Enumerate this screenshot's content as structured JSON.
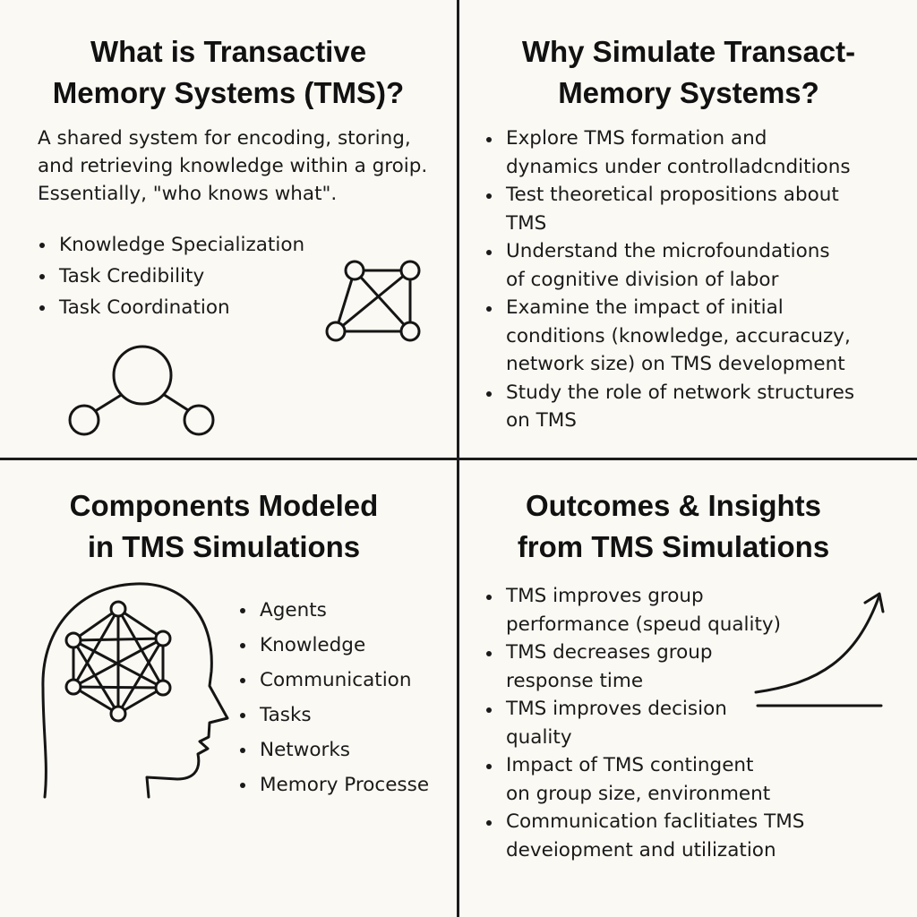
{
  "quadrants": {
    "what_is": {
      "title_lines": [
        "What is Transactive",
        "Memory Systems (TMS)?"
      ],
      "intro_lines": [
        "A shared system for encoding, storing,",
        "and retrieving knowledge within a groip.",
        "Essentially, \"who knows what\"."
      ],
      "bullets": [
        "Knowledge Specialization",
        "Task Credibility",
        "Task Coordination"
      ],
      "icons": [
        "network-graph-icon",
        "hierarchy-nodes-icon"
      ]
    },
    "why_simulate": {
      "title_lines": [
        "Why Simulate Transact-",
        "Memory Systems?"
      ],
      "bullets": [
        {
          "lines": [
            "Explore TMS formation and",
            "dynamics under controlladcnditions"
          ]
        },
        {
          "lines": [
            "Test theoretical propositions about",
            "TMS"
          ]
        },
        {
          "lines": [
            "Understand the microfoundations",
            "of cognitive division of labor"
          ]
        },
        {
          "lines": [
            "Examine the impact of initial",
            "conditions (knowledge, accuracuzy,",
            "network size) on TMS development"
          ]
        },
        {
          "lines": [
            "Study the role of network structures",
            "on TMS"
          ]
        }
      ]
    },
    "components": {
      "title_lines": [
        "Components Modeled",
        "in TMS Simulations"
      ],
      "bullets": [
        "Agents",
        "Knowledge",
        "Communication",
        "Tasks",
        "Networks",
        "Memory Processe"
      ],
      "icons": [
        "head-network-icon"
      ]
    },
    "outcomes": {
      "title_lines": [
        "Outcomes & Insights",
        "from TMS Simulations"
      ],
      "bullets": [
        {
          "lines": [
            "TMS improves group",
            "performance (speud quality)"
          ]
        },
        {
          "lines": [
            "TMS decreases group",
            "response time"
          ]
        },
        {
          "lines": [
            "TMS improves decision",
            "quality"
          ]
        },
        {
          "lines": [
            "Impact of TMS contingent",
            "on group size, environment"
          ]
        },
        {
          "lines": [
            "Communication faclitiates TMS",
            "deveiopment and utilization"
          ]
        }
      ],
      "icons": [
        "growth-arrow-icon"
      ]
    }
  }
}
